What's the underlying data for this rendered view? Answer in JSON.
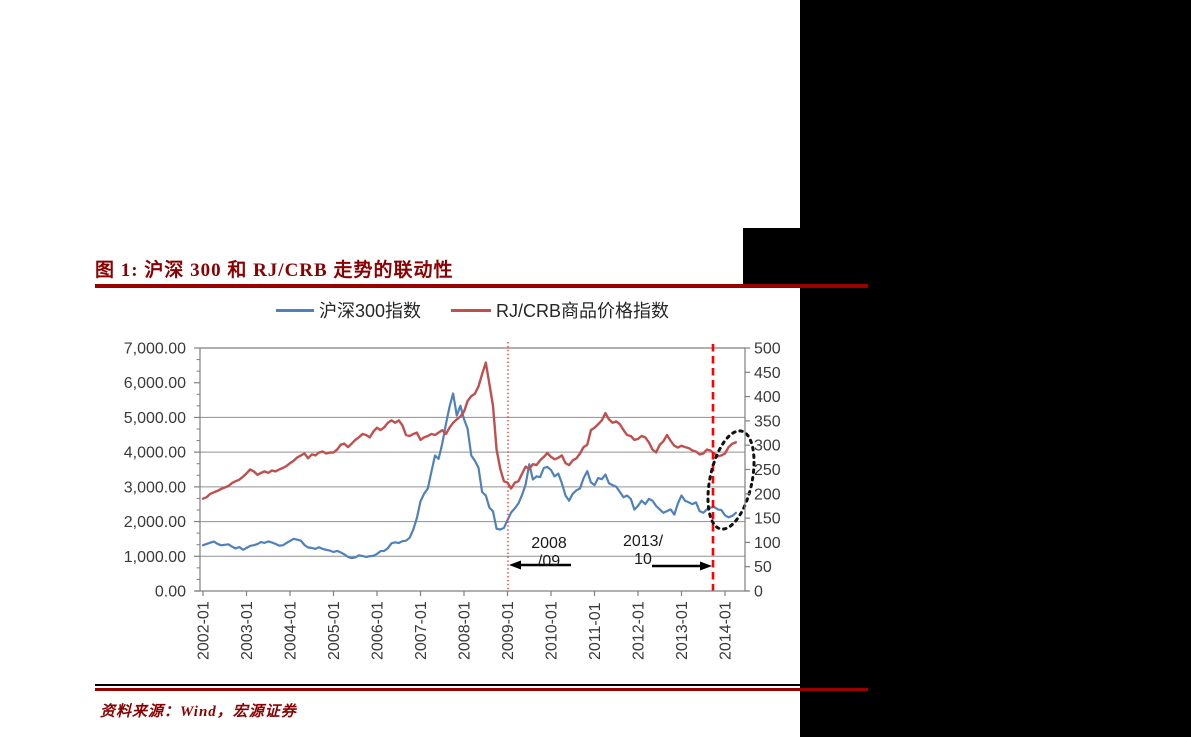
{
  "figure": {
    "title": "图 1:  沪深 300 和 RJ/CRB 走势的联动性",
    "title_color": "#8B0000",
    "rule_color": "#990000",
    "source": "资料来源：Wind，宏源证券",
    "right_panel_color": "#000000"
  },
  "legend": [
    {
      "label": "沪深300指数",
      "color": "#4F81BD"
    },
    {
      "label": "RJ/CRB商品价格指数",
      "color": "#C0504D"
    }
  ],
  "annotations": {
    "event_2008": {
      "line1": "2008",
      "line2": "/09"
    },
    "event_2013": {
      "line1": "2013/",
      "line2": "10"
    },
    "vline_2009": {
      "x_month": "2009-01",
      "style": "dotted",
      "color": "#FF2D1A"
    },
    "vline_2013": {
      "x_month": "2013-10",
      "style": "dashed",
      "color": "#FF0000"
    },
    "highlight": {
      "shape": "ellipse",
      "style": "dotted",
      "color": "#111111"
    }
  },
  "chart_data": {
    "type": "line",
    "x": [
      "2002-01",
      "2002-02",
      "2002-03",
      "2002-04",
      "2002-05",
      "2002-06",
      "2002-07",
      "2002-08",
      "2002-09",
      "2002-10",
      "2002-11",
      "2002-12",
      "2003-01",
      "2003-02",
      "2003-03",
      "2003-04",
      "2003-05",
      "2003-06",
      "2003-07",
      "2003-08",
      "2003-09",
      "2003-10",
      "2003-11",
      "2003-12",
      "2004-01",
      "2004-02",
      "2004-03",
      "2004-04",
      "2004-05",
      "2004-06",
      "2004-07",
      "2004-08",
      "2004-09",
      "2004-10",
      "2004-11",
      "2004-12",
      "2005-01",
      "2005-02",
      "2005-03",
      "2005-04",
      "2005-05",
      "2005-06",
      "2005-07",
      "2005-08",
      "2005-09",
      "2005-10",
      "2005-11",
      "2005-12",
      "2006-01",
      "2006-02",
      "2006-03",
      "2006-04",
      "2006-05",
      "2006-06",
      "2006-07",
      "2006-08",
      "2006-09",
      "2006-10",
      "2006-11",
      "2006-12",
      "2007-01",
      "2007-02",
      "2007-03",
      "2007-04",
      "2007-05",
      "2007-06",
      "2007-07",
      "2007-08",
      "2007-09",
      "2007-10",
      "2007-11",
      "2007-12",
      "2008-01",
      "2008-02",
      "2008-03",
      "2008-04",
      "2008-05",
      "2008-06",
      "2008-07",
      "2008-08",
      "2008-09",
      "2008-10",
      "2008-11",
      "2008-12",
      "2009-01",
      "2009-02",
      "2009-03",
      "2009-04",
      "2009-05",
      "2009-06",
      "2009-07",
      "2009-08",
      "2009-09",
      "2009-10",
      "2009-11",
      "2009-12",
      "2010-01",
      "2010-02",
      "2010-03",
      "2010-04",
      "2010-05",
      "2010-06",
      "2010-07",
      "2010-08",
      "2010-09",
      "2010-10",
      "2010-11",
      "2010-12",
      "2011-01",
      "2011-02",
      "2011-03",
      "2011-04",
      "2011-05",
      "2011-06",
      "2011-07",
      "2011-08",
      "2011-09",
      "2011-10",
      "2011-11",
      "2011-12",
      "2012-01",
      "2012-02",
      "2012-03",
      "2012-04",
      "2012-05",
      "2012-06",
      "2012-07",
      "2012-08",
      "2012-09",
      "2012-10",
      "2012-11",
      "2012-12",
      "2013-01",
      "2013-02",
      "2013-03",
      "2013-04",
      "2013-05",
      "2013-06",
      "2013-07",
      "2013-08",
      "2013-09",
      "2013-10",
      "2013-11",
      "2013-12",
      "2014-01",
      "2014-02",
      "2014-03",
      "2014-04"
    ],
    "x_tick_labels": [
      "2002-01",
      "2003-01",
      "2004-01",
      "2005-01",
      "2006-01",
      "2007-01",
      "2008-01",
      "2009-01",
      "2010-01",
      "2011-01",
      "2012-01",
      "2013-01",
      "2014-01"
    ],
    "series": [
      {
        "name": "沪深300指数",
        "axis": "left",
        "color": "#4F81BD",
        "values": [
          1316,
          1356,
          1392,
          1423,
          1359,
          1317,
          1332,
          1346,
          1278,
          1225,
          1267,
          1186,
          1238,
          1298,
          1319,
          1352,
          1408,
          1385,
          1428,
          1396,
          1358,
          1307,
          1316,
          1379,
          1442,
          1503,
          1478,
          1448,
          1324,
          1253,
          1242,
          1212,
          1261,
          1214,
          1186,
          1163,
          1124,
          1154,
          1112,
          1053,
          982,
          948,
          968,
          1028,
          1012,
          978,
          1002,
          1012,
          1068,
          1148,
          1158,
          1232,
          1374,
          1404,
          1382,
          1434,
          1448,
          1532,
          1772,
          2102,
          2582,
          2804,
          2952,
          3434,
          3903,
          3806,
          4252,
          4803,
          5302,
          5688,
          5052,
          5338,
          4952,
          4672,
          3902,
          3752,
          3552,
          2852,
          2752,
          2402,
          2294,
          1792,
          1772,
          1818,
          2042,
          2262,
          2382,
          2522,
          2762,
          3062,
          3652,
          3212,
          3302,
          3282,
          3542,
          3576,
          3482,
          3302,
          3382,
          3102,
          2752,
          2602,
          2802,
          2902,
          2952,
          3252,
          3452,
          3128,
          3052,
          3252,
          3222,
          3352,
          3102,
          3052,
          3002,
          2852,
          2702,
          2752,
          2652,
          2346,
          2452,
          2602,
          2502,
          2652,
          2602,
          2452,
          2352,
          2252,
          2302,
          2352,
          2202,
          2522,
          2752,
          2602,
          2552,
          2502,
          2552,
          2302,
          2252,
          2352,
          2402,
          2422,
          2352,
          2330,
          2182,
          2122,
          2162,
          2252
        ]
      },
      {
        "name": "RJ/CRB商品价格指数",
        "axis": "right",
        "color": "#C0504D",
        "values": [
          190,
          193,
          200,
          203,
          206,
          210,
          213,
          216,
          222,
          226,
          229,
          235,
          242,
          250,
          246,
          239,
          243,
          246,
          243,
          248,
          246,
          250,
          253,
          257,
          263,
          268,
          275,
          279,
          283,
          273,
          281,
          279,
          285,
          287,
          283,
          285,
          285,
          291,
          301,
          303,
          296,
          303,
          311,
          316,
          323,
          321,
          316,
          328,
          336,
          331,
          337,
          346,
          351,
          346,
          351,
          341,
          321,
          319,
          323,
          326,
          311,
          316,
          319,
          323,
          321,
          326,
          331,
          323,
          336,
          346,
          353,
          359,
          369,
          391,
          401,
          406,
          421,
          446,
          470,
          426,
          381,
          291,
          251,
          226,
          223,
          211,
          223,
          226,
          241,
          256,
          251,
          261,
          259,
          269,
          276,
          284,
          276,
          271,
          274,
          279,
          263,
          259,
          269,
          273,
          283,
          296,
          301,
          331,
          336,
          343,
          351,
          366,
          353,
          346,
          349,
          343,
          331,
          321,
          319,
          311,
          313,
          319,
          316,
          306,
          291,
          285,
          301,
          308,
          321,
          309,
          299,
          295,
          299,
          296,
          294,
          289,
          287,
          281,
          283,
          291,
          289,
          283,
          277,
          279,
          283,
          296,
          303,
          306
        ]
      }
    ],
    "y_left": {
      "min": 0,
      "max": 7000,
      "tick_labels": [
        "7,000.00",
        "6,000.00",
        "5,000.00",
        "4,000.00",
        "3,000.00",
        "2,000.00",
        "1,000.00",
        "0.00"
      ]
    },
    "y_right": {
      "min": 0,
      "max": 500,
      "tick_labels": [
        "500",
        "450",
        "400",
        "350",
        "300",
        "250",
        "200",
        "150",
        "100",
        "50",
        "0"
      ]
    },
    "gridlines_left_values": [
      5000,
      4000,
      3000,
      2000,
      1000
    ],
    "legend_position": "top",
    "grid": "horizontal-only"
  }
}
